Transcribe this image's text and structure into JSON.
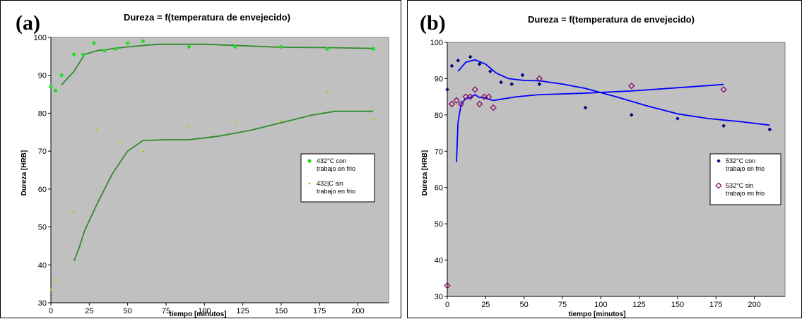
{
  "panels": [
    {
      "letter": "(a)"
    },
    {
      "letter": "(b)"
    }
  ],
  "chart_data": [
    {
      "type": "scatter",
      "title": "Dureza = f(temperatura de envejecido)",
      "xlabel": "tiempo  [minutos]",
      "ylabel": "Dureza [HRB]",
      "xlim": [
        0,
        220
      ],
      "ylim": [
        30,
        100
      ],
      "xticks": [
        0,
        25,
        50,
        75,
        100,
        125,
        150,
        175,
        200
      ],
      "yticks": [
        30,
        40,
        50,
        60,
        70,
        80,
        90,
        100
      ],
      "grid": false,
      "legend": "right",
      "colors": {
        "plot_bg": "#c0c0c0"
      },
      "series": [
        {
          "name": "432°C con trabajo en frio",
          "marker": "dot",
          "color": "#22dd22",
          "points": [
            [
              0,
              87
            ],
            [
              3,
              86
            ],
            [
              7,
              90
            ],
            [
              15,
              95.5
            ],
            [
              21,
              95.5
            ],
            [
              28,
              98.5
            ],
            [
              35,
              96.5
            ],
            [
              42,
              97
            ],
            [
              50,
              98.5
            ],
            [
              60,
              99
            ],
            [
              90,
              97.5
            ],
            [
              120,
              97.5
            ],
            [
              150,
              97.5
            ],
            [
              180,
              97
            ],
            [
              210,
              97
            ]
          ]
        },
        {
          "name": "432|C sin trabajo en frio",
          "marker": "small-dot",
          "color": "#b5c81a",
          "points": [
            [
              0,
              33.5
            ],
            [
              3,
              36
            ],
            [
              15,
              54
            ],
            [
              30,
              75.5
            ],
            [
              45,
              72.5
            ],
            [
              60,
              70
            ],
            [
              90,
              76.5
            ],
            [
              120,
              77.5
            ],
            [
              150,
              78
            ],
            [
              180,
              85.5
            ],
            [
              210,
              78.5
            ]
          ]
        }
      ],
      "trendlines": [
        {
          "color": "#2e8b2e",
          "points": [
            [
              7,
              87.5
            ],
            [
              15,
              91
            ],
            [
              22,
              95.5
            ],
            [
              30,
              96.5
            ],
            [
              40,
              97
            ],
            [
              50,
              97.5
            ],
            [
              70,
              98.2
            ],
            [
              100,
              98.2
            ],
            [
              125,
              97.8
            ],
            [
              150,
              97.4
            ],
            [
              180,
              97.3
            ],
            [
              210,
              97.1
            ]
          ]
        },
        {
          "color": "#2e8b2e",
          "points": [
            [
              15,
              41
            ],
            [
              18,
              44
            ],
            [
              22,
              49
            ],
            [
              30,
              56
            ],
            [
              40,
              64
            ],
            [
              50,
              70
            ],
            [
              60,
              72.8
            ],
            [
              75,
              73
            ],
            [
              90,
              73
            ],
            [
              110,
              74
            ],
            [
              130,
              75.5
            ],
            [
              150,
              77.5
            ],
            [
              170,
              79.5
            ],
            [
              185,
              80.5
            ],
            [
              210,
              80.5
            ]
          ]
        }
      ]
    },
    {
      "type": "scatter",
      "title": "Dureza = f(temperatura de envejecido)",
      "xlabel": "tiempo  [minutos]",
      "ylabel": "Dureza [HRB]",
      "xlim": [
        0,
        220
      ],
      "ylim": [
        30,
        100
      ],
      "xticks": [
        0,
        25,
        50,
        75,
        100,
        125,
        150,
        175,
        200
      ],
      "yticks": [
        30,
        40,
        50,
        60,
        70,
        80,
        90,
        100
      ],
      "grid": false,
      "legend": "right",
      "colors": {
        "plot_bg": "#c0c0c0"
      },
      "series": [
        {
          "name": "532°C  con trabajo en frio",
          "marker": "diamond-filled",
          "color": "#000080",
          "points": [
            [
              0,
              87
            ],
            [
              3,
              93.5
            ],
            [
              7,
              95
            ],
            [
              15,
              96
            ],
            [
              21,
              94
            ],
            [
              28,
              92
            ],
            [
              35,
              89
            ],
            [
              42,
              88.5
            ],
            [
              49,
              91
            ],
            [
              60,
              88.5
            ],
            [
              90,
              82
            ],
            [
              120,
              80
            ],
            [
              150,
              79
            ],
            [
              180,
              77
            ],
            [
              210,
              76
            ]
          ]
        },
        {
          "name": "532°C sin trabajo en frio",
          "marker": "diamond-open",
          "color": "#800060",
          "points": [
            [
              0,
              33
            ],
            [
              3,
              83
            ],
            [
              6,
              84
            ],
            [
              9,
              83
            ],
            [
              12,
              85
            ],
            [
              15,
              85
            ],
            [
              18,
              87
            ],
            [
              21,
              83
            ],
            [
              24,
              85
            ],
            [
              27,
              85
            ],
            [
              30,
              82
            ],
            [
              60,
              90
            ],
            [
              120,
              88
            ],
            [
              180,
              87
            ]
          ]
        }
      ],
      "trendlines": [
        {
          "color": "#0000ff",
          "points": [
            [
              7,
              92
            ],
            [
              12,
              94.5
            ],
            [
              18,
              95.2
            ],
            [
              25,
              94
            ],
            [
              32,
              91.5
            ],
            [
              40,
              90
            ],
            [
              50,
              89.5
            ],
            [
              60,
              89.4
            ],
            [
              75,
              88.5
            ],
            [
              90,
              87.3
            ],
            [
              110,
              85
            ],
            [
              130,
              82.5
            ],
            [
              150,
              80.3
            ],
            [
              170,
              79
            ],
            [
              190,
              78.2
            ],
            [
              210,
              77.2
            ]
          ]
        },
        {
          "color": "#0000ff",
          "points": [
            [
              6,
              67
            ],
            [
              7,
              78
            ],
            [
              9,
              83
            ],
            [
              12,
              84.5
            ],
            [
              15,
              84.8
            ],
            [
              18,
              85.6
            ],
            [
              21,
              84.8
            ],
            [
              24,
              84.8
            ],
            [
              27,
              84.3
            ],
            [
              30,
              84
            ],
            [
              45,
              85
            ],
            [
              60,
              85.6
            ],
            [
              90,
              86
            ],
            [
              120,
              86.6
            ],
            [
              150,
              87.5
            ],
            [
              180,
              88.4
            ]
          ]
        }
      ]
    }
  ]
}
